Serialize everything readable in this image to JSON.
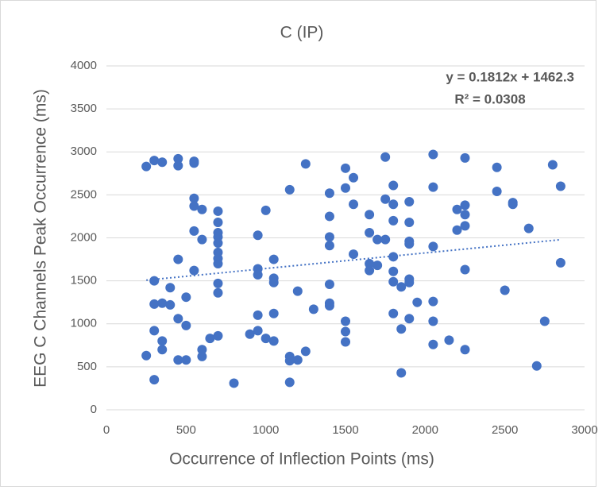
{
  "chart_data": {
    "type": "scatter",
    "title": "C (IP)",
    "x_label": "Occurrence of Inflection Points (ms)",
    "y_label": "EEG C Channels Peak Occurrence (ms)",
    "color": "#4472c4",
    "grid": true,
    "xlim": [
      0,
      3000
    ],
    "xticks": [
      0,
      500,
      1000,
      1500,
      2000,
      2500,
      3000
    ],
    "ylim": [
      0,
      4000
    ],
    "yticks": [
      0,
      500,
      1000,
      1500,
      2000,
      2500,
      3000,
      3500,
      4000
    ],
    "trendline": {
      "slope": 0.1812,
      "intercept": 1462.3,
      "equation": "y = 0.1812x + 1462.3",
      "r2": "R² = 0.0308"
    },
    "x": [
      250,
      250,
      300,
      300,
      300,
      300,
      300,
      350,
      350,
      350,
      350,
      400,
      400,
      450,
      450,
      450,
      450,
      450,
      500,
      500,
      500,
      550,
      550,
      550,
      550,
      550,
      550,
      600,
      600,
      600,
      600,
      650,
      700,
      700,
      700,
      700,
      700,
      700,
      700,
      700,
      700,
      700,
      700,
      800,
      900,
      950,
      950,
      950,
      950,
      950,
      1000,
      1000,
      1050,
      1050,
      1050,
      1050,
      1050,
      1150,
      1150,
      1150,
      1150,
      1200,
      1200,
      1250,
      1250,
      1300,
      1400,
      1400,
      1400,
      1400,
      1400,
      1400,
      1400,
      1500,
      1500,
      1500,
      1500,
      1500,
      1550,
      1550,
      1550,
      1650,
      1650,
      1650,
      1650,
      1700,
      1700,
      1750,
      1750,
      1750,
      1800,
      1800,
      1800,
      1800,
      1800,
      1800,
      1800,
      1850,
      1850,
      1850,
      1900,
      1900,
      1900,
      1900,
      1900,
      1900,
      1900,
      1950,
      2050,
      2050,
      2050,
      2050,
      2050,
      2050,
      2150,
      2200,
      2200,
      2250,
      2250,
      2250,
      2250,
      2250,
      2250,
      2450,
      2450,
      2500,
      2550,
      2550,
      2650,
      2700,
      2750,
      2800,
      2850,
      2850
    ],
    "values": [
      2830,
      630,
      2900,
      1500,
      1230,
      920,
      350,
      2880,
      1240,
      800,
      700,
      1420,
      1220,
      2920,
      2840,
      1750,
      1060,
      580,
      1310,
      980,
      580,
      2890,
      2870,
      2460,
      2370,
      2080,
      1620,
      2330,
      1980,
      700,
      620,
      830,
      2310,
      2180,
      2060,
      2010,
      1940,
      1830,
      1760,
      1700,
      1470,
      1360,
      860,
      310,
      880,
      2030,
      1640,
      1570,
      1100,
      920,
      2320,
      830,
      1750,
      1530,
      1480,
      1120,
      800,
      2560,
      620,
      570,
      320,
      1380,
      580,
      2860,
      680,
      1170,
      2520,
      2250,
      2010,
      1910,
      1460,
      1240,
      1210,
      2810,
      2580,
      1030,
      910,
      790,
      2700,
      2390,
      1810,
      2270,
      2060,
      1700,
      1620,
      1980,
      1680,
      2940,
      2450,
      1980,
      2610,
      2390,
      2200,
      1780,
      1610,
      1490,
      1120,
      1430,
      940,
      430,
      2420,
      2180,
      1960,
      1930,
      1520,
      1480,
      1060,
      1250,
      2970,
      2590,
      1900,
      1260,
      1030,
      760,
      810,
      2330,
      2090,
      2930,
      2380,
      2270,
      2140,
      1630,
      700,
      2820,
      2540,
      1390,
      2410,
      2390,
      2110,
      510,
      1030,
      2850,
      2600,
      1710
    ]
  }
}
